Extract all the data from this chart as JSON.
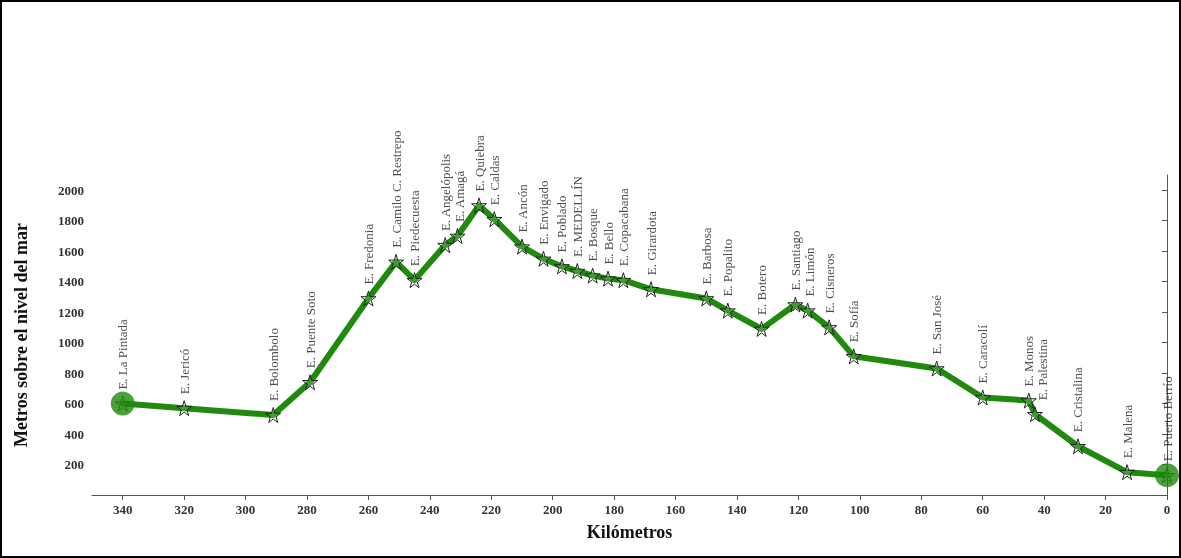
{
  "chart_data": {
    "type": "line",
    "xlabel": "Kilómetros",
    "ylabel": "Metros sobre el nivel del mar",
    "xlim": [
      350,
      0
    ],
    "xticks": [
      340,
      320,
      300,
      280,
      260,
      240,
      220,
      200,
      180,
      160,
      140,
      120,
      100,
      80,
      60,
      40,
      20,
      0
    ],
    "ylim": [
      0,
      2100
    ],
    "yticks": [
      200,
      400,
      600,
      800,
      1000,
      1200,
      1400,
      1600,
      1800,
      2000
    ],
    "grid": false,
    "line_style": "solid",
    "series": [
      {
        "color": "#1f8a0e",
        "marker": "star",
        "x": [
          340,
          320,
          291,
          279,
          260,
          251,
          245,
          235,
          231,
          224,
          219,
          210,
          203,
          197,
          192,
          187,
          182,
          177,
          168,
          150,
          143,
          132,
          121,
          117,
          110,
          102,
          75,
          60,
          45,
          43,
          29,
          13,
          0
        ],
        "values": [
          600,
          570,
          525,
          740,
          1290,
          1530,
          1410,
          1640,
          1700,
          1900,
          1810,
          1630,
          1550,
          1500,
          1470,
          1440,
          1420,
          1410,
          1350,
          1290,
          1210,
          1090,
          1250,
          1210,
          1100,
          910,
          830,
          640,
          620,
          530,
          320,
          150,
          130
        ]
      },
      {
        "type": "scatter",
        "color": "#1f8a0e",
        "marker": "circle",
        "x": [
          340,
          0
        ],
        "values": [
          600,
          130
        ]
      }
    ],
    "annotations": [
      {
        "text": "E. La Pintada",
        "x": 340,
        "y": 600
      },
      {
        "text": "E. Jericó",
        "x": 320,
        "y": 570
      },
      {
        "text": "E. Bolombolo",
        "x": 291,
        "y": 525
      },
      {
        "text": "E. Puente Soto",
        "x": 279,
        "y": 740
      },
      {
        "text": "E. Fredonia",
        "x": 260,
        "y": 1290
      },
      {
        "text": "E. Camilo C. Restrepo",
        "x": 251,
        "y": 1530
      },
      {
        "text": "E. Piedecuesta",
        "x": 245,
        "y": 1410
      },
      {
        "text": "E. Angelópolis",
        "x": 235,
        "y": 1640
      },
      {
        "text": "E. Amagá",
        "x": 231,
        "y": 1700
      },
      {
        "text": "E. Quiebra",
        "x": 224,
        "y": 1900
      },
      {
        "text": "E. Caldas",
        "x": 219,
        "y": 1810
      },
      {
        "text": "E. Ancón",
        "x": 210,
        "y": 1630
      },
      {
        "text": "E. Envigado",
        "x": 203,
        "y": 1550
      },
      {
        "text": "E. Poblado",
        "x": 197,
        "y": 1500
      },
      {
        "text": "E. MEDELLÍN",
        "x": 192,
        "y": 1470
      },
      {
        "text": "E. Bosque",
        "x": 187,
        "y": 1440
      },
      {
        "text": "E. Bello",
        "x": 182,
        "y": 1420
      },
      {
        "text": "E. Copacabana",
        "x": 177,
        "y": 1410
      },
      {
        "text": "E. Girardota",
        "x": 168,
        "y": 1350
      },
      {
        "text": "E. Barbosa",
        "x": 150,
        "y": 1290
      },
      {
        "text": "E. Popalito",
        "x": 143,
        "y": 1210
      },
      {
        "text": "E. Botero",
        "x": 132,
        "y": 1090
      },
      {
        "text": "E. Santiago",
        "x": 121,
        "y": 1250
      },
      {
        "text": "E. Limón",
        "x": 117,
        "y": 1210
      },
      {
        "text": "E. Cisneros",
        "x": 110,
        "y": 1100
      },
      {
        "text": "E. Sofía",
        "x": 102,
        "y": 910
      },
      {
        "text": "E. San José",
        "x": 75,
        "y": 830
      },
      {
        "text": "E. Caracolí",
        "x": 60,
        "y": 640
      },
      {
        "text": "E. Monos",
        "x": 45,
        "y": 620
      },
      {
        "text": "E. Palestina",
        "x": 43,
        "y": 530
      },
      {
        "text": "E. Cristalina",
        "x": 29,
        "y": 320
      },
      {
        "text": "E. Malena",
        "x": 13,
        "y": 150
      },
      {
        "text": "E. Puerto Berrío",
        "x": 0,
        "y": 130
      }
    ]
  }
}
